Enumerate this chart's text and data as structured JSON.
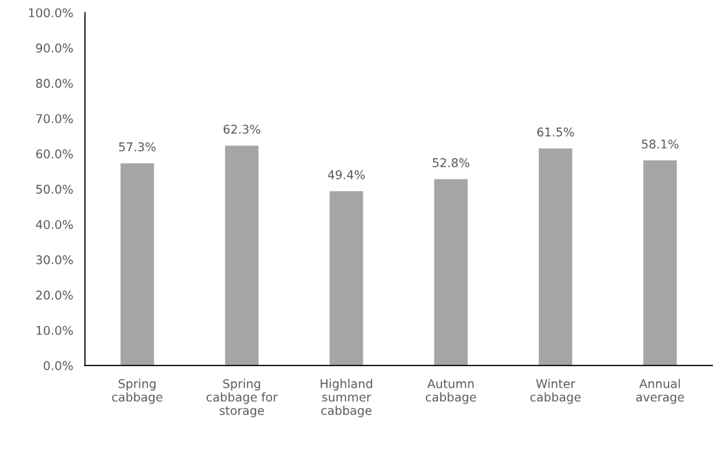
{
  "chart_data": {
    "type": "bar",
    "categories": [
      "Spring\ncabbage",
      "Spring\ncabbage for\nstorage",
      "Highland\nsummer\ncabbage",
      "Autumn\ncabbage",
      "Winter\ncabbage",
      "Annual\naverage"
    ],
    "values": [
      57.3,
      62.3,
      49.4,
      52.8,
      61.5,
      58.1
    ],
    "value_labels": [
      "57.3%",
      "62.3%",
      "49.4%",
      "52.8%",
      "61.5%",
      "58.1%"
    ],
    "color": "#a5a5a5",
    "ylim": [
      0,
      100
    ],
    "yticks": [
      {
        "value": 0,
        "label": "0.0%"
      },
      {
        "value": 10,
        "label": "10.0%"
      },
      {
        "value": 20,
        "label": "20.0%"
      },
      {
        "value": 30,
        "label": "30.0%"
      },
      {
        "value": 40,
        "label": "40.0%"
      },
      {
        "value": 50,
        "label": "50.0%"
      },
      {
        "value": 60,
        "label": "60.0%"
      },
      {
        "value": 70,
        "label": "70.0%"
      },
      {
        "value": 80,
        "label": "80.0%"
      },
      {
        "value": 90,
        "label": "90.0%"
      },
      {
        "value": 100,
        "label": "100.0%"
      }
    ],
    "grid": false,
    "legend": false
  }
}
